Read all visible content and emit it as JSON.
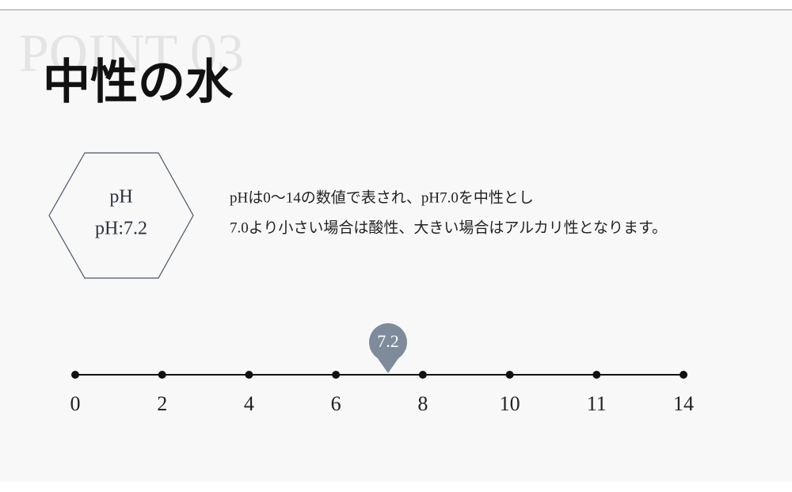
{
  "watermark": "POINT 03",
  "title": "中性の水",
  "badge": {
    "label": "pH",
    "value_text": "pH:7.2"
  },
  "description": [
    "pHは0～14の数値で表され、pH7.0を中性とし",
    "7.0より小さい場合は酸性、大きい場合はアルカリ性となります。"
  ],
  "scale": {
    "ticks": [
      0,
      2,
      4,
      6,
      8,
      10,
      11,
      14
    ],
    "marker": {
      "value": 7.2,
      "label": "7.2"
    }
  }
}
